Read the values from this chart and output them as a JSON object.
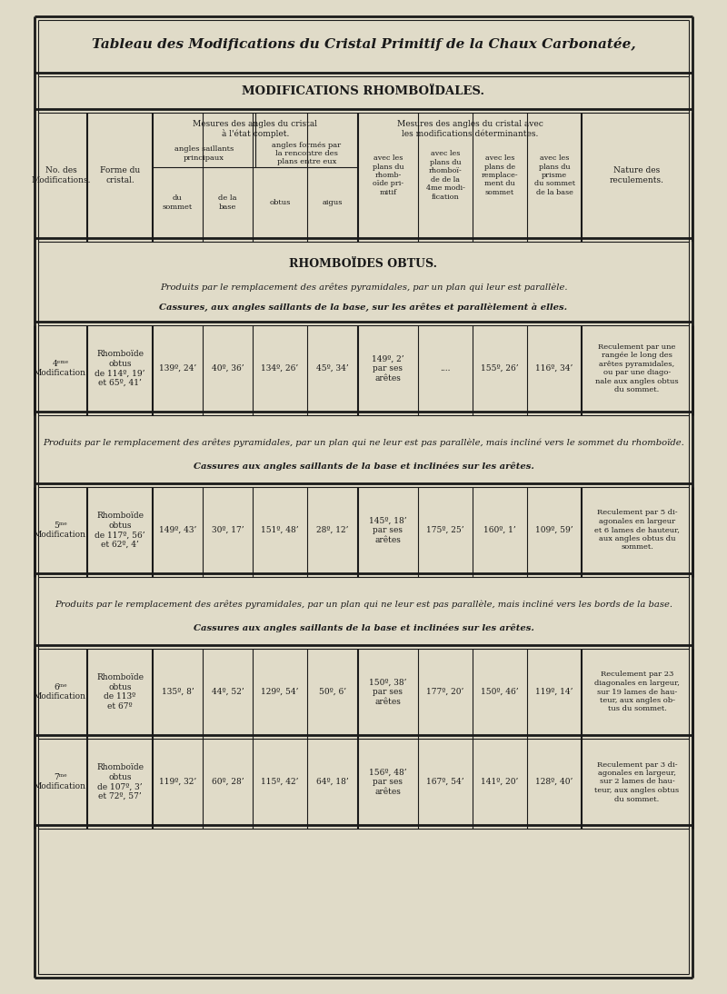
{
  "title": "Tableau des Modifications du Cristal Primitif de la Chaux Carbonatée,",
  "subtitle": "MODIFICATIONS RHOMBOÏDALES.",
  "bg_color": "#e0dbc8",
  "text_color": "#1a1a1a",
  "sections": [
    {
      "type": "data_row",
      "no": "4ᵉᵐᵉ\nModification.",
      "forme": "Rhomboïde\nobtus\nde 114º, 19’\net 65º, 41’",
      "du_sommet": "139º, 24’",
      "de_la_base": "40º, 36’",
      "obtus": "134º, 26’",
      "aigus": "45º, 34’",
      "avec_rhomb": "149º, 2’\npar ses\narêtes",
      "avec_4me": "....",
      "avec_remplace": "155º, 26’",
      "avec_prisme": "116º, 34’",
      "nature": "Reculement par une\nrangée le long des\narêtes pyramidales,\nou par une diago-\nnale aux angles obtus\ndu sommet."
    },
    {
      "type": "data_row",
      "no": "5ᵐᵉ\nModification.",
      "forme": "Rhomboïde\nobtus\nde 117º, 56’\net 62º, 4’",
      "du_sommet": "149º, 43’",
      "de_la_base": "30º, 17’",
      "obtus": "151º, 48’",
      "aigus": "28º, 12’",
      "avec_rhomb": "145º, 18’\npar ses\narêtes",
      "avec_4me": "175º, 25’",
      "avec_remplace": "160º, 1’",
      "avec_prisme": "109º, 59’",
      "nature": "Reculement par 5 di-\nagonales en largeur\net 6 lames de hauteur,\naux angles obtus du\nsommet."
    },
    {
      "type": "data_row",
      "no": "6ᵐᵉ\nModification.",
      "forme": "Rhomboïde\nobtus\nde 113º\net 67º",
      "du_sommet": "135º, 8’",
      "de_la_base": "44º, 52’",
      "obtus": "129º, 54’",
      "aigus": "50º, 6’",
      "avec_rhomb": "150º, 38’\npar ses\narêtes",
      "avec_4me": "177º, 20’",
      "avec_remplace": "150º, 46’",
      "avec_prisme": "119º, 14’",
      "nature": "Reculement par 23\ndiagonales en largeur,\nsur 19 lames de hau-\nteur, aux angles ob-\ntus du sommet."
    },
    {
      "type": "data_row",
      "no": "7ᵐᵉ\nModification.",
      "forme": "Rhomboïde\nobtus\nde 107º, 3’\net 72º, 57’",
      "du_sommet": "119º, 32’",
      "de_la_base": "60º, 28’",
      "obtus": "115º, 42’",
      "aigus": "64º, 18’",
      "avec_rhomb": "156º, 48’\npar ses\narêtes",
      "avec_4me": "167º, 54’",
      "avec_remplace": "141º, 20’",
      "avec_prisme": "128º, 40’",
      "nature": "Reculement par 3 di-\nagonales en largeur,\nsur 2 lames de hau-\nteur, aux angles obtus\ndu sommet."
    }
  ]
}
